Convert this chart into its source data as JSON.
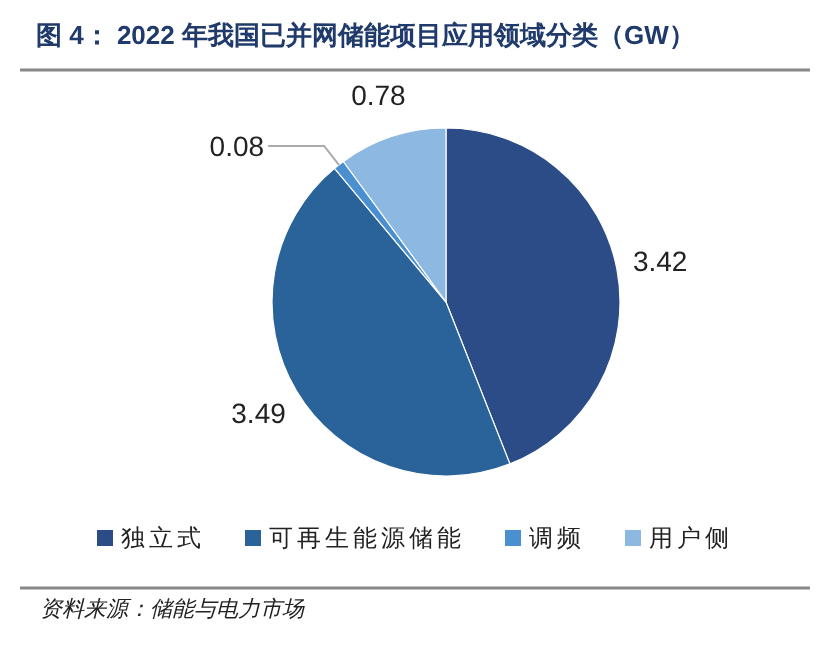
{
  "chart_data": {
    "type": "pie",
    "title": "图 4：  2022 年我国已并网储能项目应用领域分类（GW）",
    "categories": [
      "独立式",
      "可再生能源储能",
      "调频",
      "用户侧"
    ],
    "values": [
      3.42,
      3.49,
      0.08,
      0.78
    ],
    "colors": [
      "#2b4c87",
      "#2a6399",
      "#4a90d0",
      "#8db8e2"
    ],
    "data_labels": true,
    "legend": "bottom",
    "annotations": [
      "资料来源：储能与电力市场"
    ]
  }
}
